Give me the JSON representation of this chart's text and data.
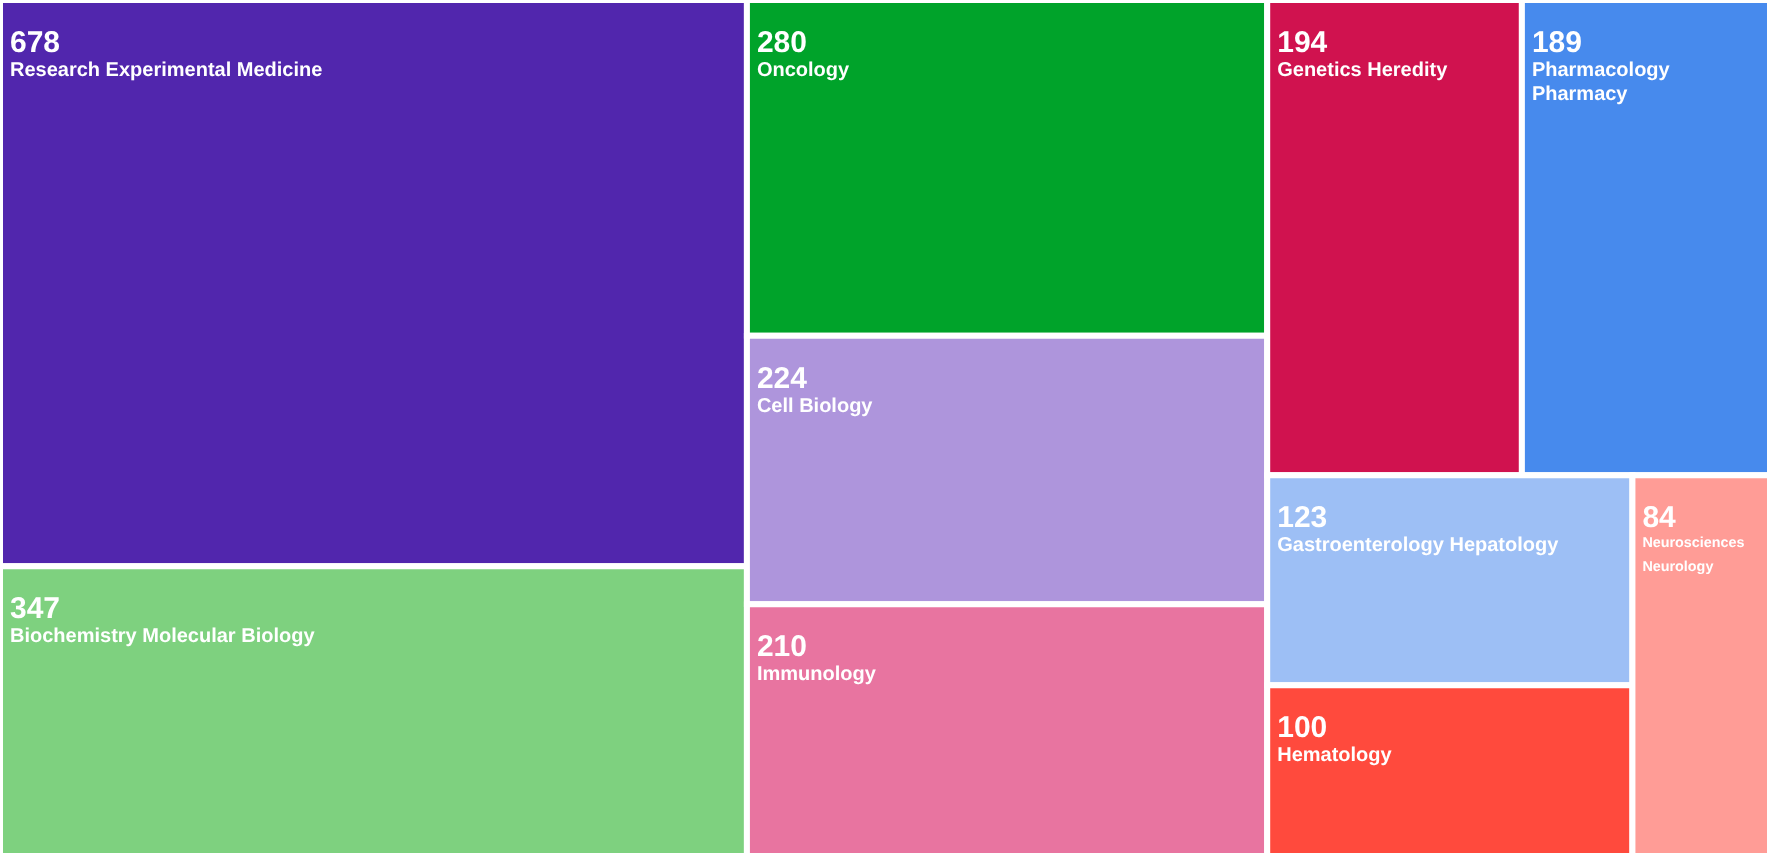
{
  "chart_data": {
    "type": "other",
    "data_labels": true,
    "categories": [
      "Research Experimental Medicine",
      "Biochemistry Molecular Biology",
      "Oncology",
      "Cell Biology",
      "Immunology",
      "Genetics Heredity",
      "Pharmacology Pharmacy",
      "Gastroenterology Hepatology",
      "Hematology",
      "Neurosciences Neurology"
    ],
    "values": [
      678,
      347,
      280,
      224,
      210,
      194,
      189,
      123,
      100,
      84
    ],
    "colors": [
      "#5126ad",
      "#7ed17f",
      "#00a32a",
      "#ae95dc",
      "#e874a0",
      "#d0124f",
      "#478aed",
      "#9dbff5",
      "#ff4a3d",
      "#ff9c96"
    ]
  }
}
